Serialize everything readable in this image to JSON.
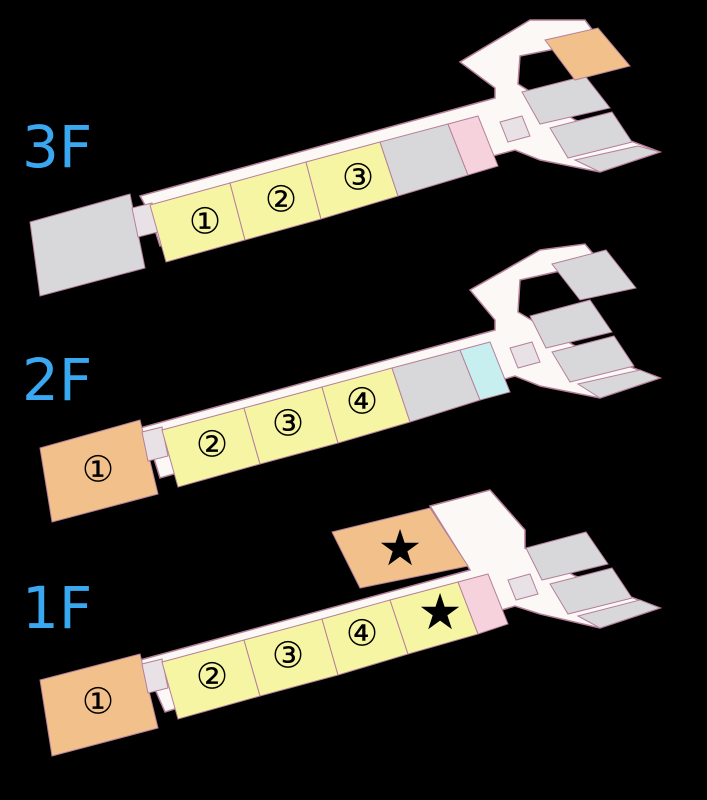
{
  "colors": {
    "background": "#000000",
    "corridor": "#fbf8f6",
    "outline": "#b5809a",
    "yellow_room": "#f6f5a4",
    "orange_room": "#f2c08b",
    "gray_room": "#d8d8da",
    "pink_room": "#f6d2dc",
    "cyan_room": "#c7efef",
    "floor_label": "#3aa8f0"
  },
  "floors": [
    {
      "label": "3F",
      "markers": [
        "①",
        "②",
        "③"
      ],
      "highlighted_room_colors": [
        "gray",
        "pink",
        "orange"
      ]
    },
    {
      "label": "2F",
      "markers": [
        "①",
        "②",
        "③",
        "④"
      ],
      "highlighted_room_colors": [
        "orange",
        "gray",
        "cyan"
      ]
    },
    {
      "label": "1F",
      "markers": [
        "①",
        "②",
        "③",
        "④",
        "★",
        "★"
      ],
      "highlighted_room_colors": [
        "orange",
        "pink",
        "gray"
      ]
    }
  ]
}
